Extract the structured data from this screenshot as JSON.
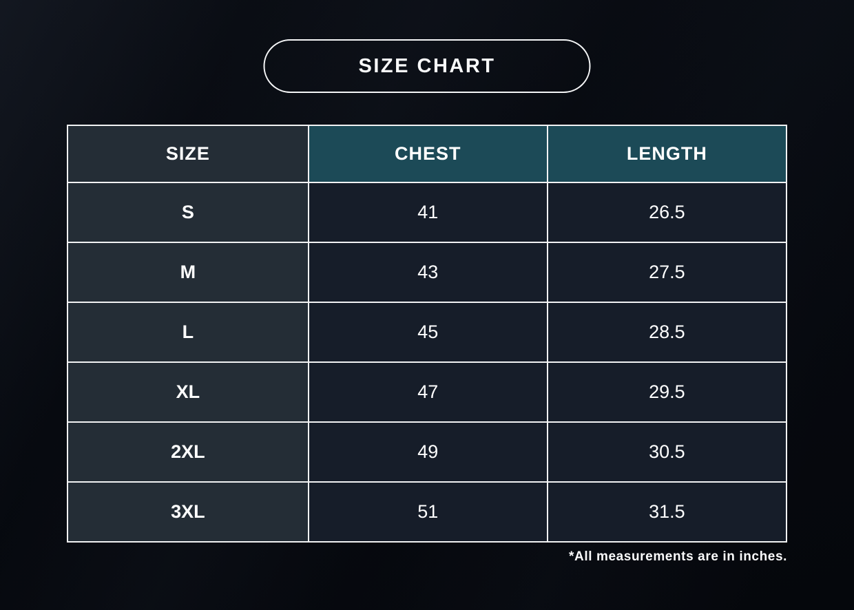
{
  "title": "SIZE CHART",
  "table": {
    "headers": [
      "SIZE",
      "CHEST",
      "LENGTH"
    ],
    "rows": [
      {
        "size": "S",
        "chest": "41",
        "length": "26.5"
      },
      {
        "size": "M",
        "chest": "43",
        "length": "27.5"
      },
      {
        "size": "L",
        "chest": "45",
        "length": "28.5"
      },
      {
        "size": "XL",
        "chest": "47",
        "length": "29.5"
      },
      {
        "size": "2XL",
        "chest": "49",
        "length": "30.5"
      },
      {
        "size": "3XL",
        "chest": "51",
        "length": "31.5"
      }
    ]
  },
  "footnote": "*All measurements are in inches.",
  "colors": {
    "background": "#070a10",
    "header_accent_teal": "#1c4a57",
    "size_column_bg": "#242d36",
    "value_cell_bg": "#161d29",
    "border": "#f2f3f4",
    "text": "#ffffff"
  }
}
